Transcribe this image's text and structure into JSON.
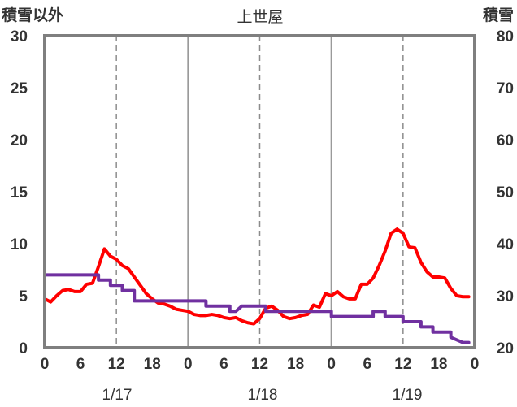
{
  "chart_data": {
    "type": "line",
    "title": "上世屋",
    "left_axis_label": "積雪以外",
    "right_axis_label": "積雪",
    "left_ylim": [
      0,
      30
    ],
    "left_ticks": [
      0,
      5,
      10,
      15,
      20,
      25,
      30
    ],
    "right_ylim": [
      20,
      80
    ],
    "right_ticks": [
      20,
      30,
      40,
      50,
      60,
      70,
      80
    ],
    "x_hours_total": 72,
    "x_tick_labels": [
      "0",
      "6",
      "12",
      "18",
      "0",
      "6",
      "12",
      "18",
      "0",
      "6",
      "12",
      "18",
      "0"
    ],
    "date_labels": [
      "1/17",
      "1/18",
      "1/19"
    ],
    "grid": "vertical: solid at 0h, dashed at 12h",
    "series": [
      {
        "axis": "left",
        "color": "#ff0000",
        "x": [
          0,
          1,
          2,
          3,
          4,
          5,
          6,
          7,
          8,
          9,
          10,
          11,
          12,
          13,
          14,
          15,
          16,
          17,
          18,
          19,
          20,
          21,
          22,
          23,
          24,
          25,
          26,
          27,
          28,
          29,
          30,
          31,
          32,
          33,
          34,
          35,
          36,
          37,
          38,
          39,
          40,
          41,
          42,
          43,
          44,
          45,
          46,
          47,
          48,
          49,
          50,
          51,
          52,
          53,
          54,
          55,
          56,
          57,
          58,
          59,
          60,
          61,
          62,
          63,
          64,
          65,
          66,
          67,
          68,
          69,
          70,
          71
        ],
        "values": [
          4.7,
          4.4,
          5.0,
          5.5,
          5.6,
          5.4,
          5.4,
          6.1,
          6.2,
          7.8,
          9.5,
          8.8,
          8.5,
          7.9,
          7.6,
          6.8,
          6.0,
          5.2,
          4.7,
          4.3,
          4.2,
          4.0,
          3.7,
          3.6,
          3.5,
          3.2,
          3.1,
          3.1,
          3.2,
          3.1,
          2.9,
          2.8,
          2.9,
          2.6,
          2.4,
          2.3,
          2.8,
          3.8,
          4.0,
          3.6,
          3.0,
          2.8,
          2.9,
          3.1,
          3.2,
          4.1,
          3.9,
          5.2,
          5.0,
          5.4,
          4.9,
          4.7,
          4.7,
          6.1,
          6.1,
          6.7,
          7.9,
          9.3,
          11.0,
          11.4,
          11.0,
          9.7,
          9.6,
          8.2,
          7.3,
          6.8,
          6.8,
          6.7,
          5.7,
          5.0,
          4.9,
          4.9
        ]
      },
      {
        "axis": "left",
        "color": "#7030a0",
        "x": [
          0,
          9,
          9,
          10,
          11,
          11,
          12,
          13,
          13,
          14,
          15,
          15,
          17,
          18,
          18,
          27,
          27,
          31,
          31,
          32,
          33,
          33,
          37,
          37,
          38,
          38,
          48,
          48,
          51,
          51,
          55,
          55,
          57,
          57,
          58,
          58,
          60,
          60,
          63,
          63,
          65,
          65,
          68,
          68,
          70,
          71
        ],
        "values": [
          7,
          7,
          6.5,
          6.5,
          6.5,
          6,
          6,
          6,
          5.5,
          5.5,
          5.5,
          4.5,
          4.5,
          4.5,
          4.5,
          4.5,
          4,
          4,
          3.5,
          3.5,
          4,
          4,
          4,
          3.5,
          3.5,
          3.5,
          3.5,
          3,
          3,
          3,
          3,
          3.5,
          3.5,
          3,
          3,
          3,
          3,
          2.5,
          2.5,
          2,
          2,
          1.5,
          1.5,
          1,
          0.5,
          0.5
        ]
      }
    ]
  }
}
